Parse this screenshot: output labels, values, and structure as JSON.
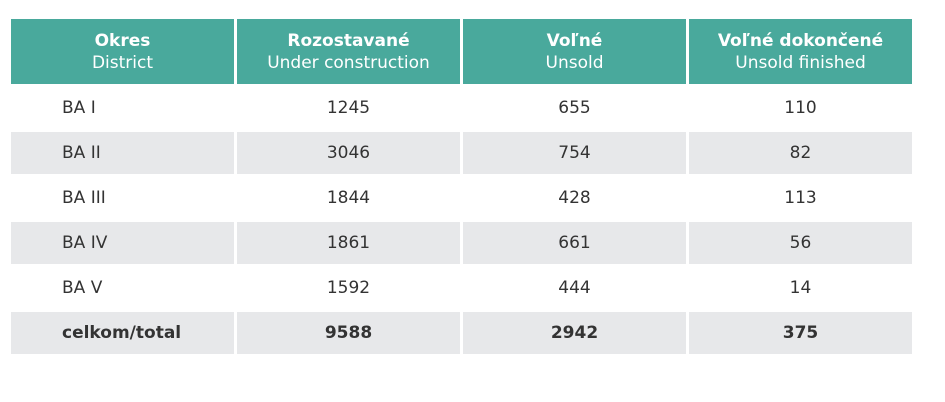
{
  "table": {
    "headers": [
      {
        "main": "Okres",
        "sub": "District"
      },
      {
        "main": "Rozostavané",
        "sub": "Under construction"
      },
      {
        "main": "Voľné",
        "sub": "Unsold"
      },
      {
        "main": "Voľné dokončené",
        "sub": "Unsold finished"
      }
    ],
    "rows": [
      {
        "district": "BA I",
        "under_construction": "1245",
        "unsold": "655",
        "unsold_finished": "110"
      },
      {
        "district": "BA II",
        "under_construction": "3046",
        "unsold": "754",
        "unsold_finished": "82"
      },
      {
        "district": "BA III",
        "under_construction": "1844",
        "unsold": "428",
        "unsold_finished": "113"
      },
      {
        "district": "BA IV",
        "under_construction": "1861",
        "unsold": "661",
        "unsold_finished": "56"
      },
      {
        "district": "BA V",
        "under_construction": "1592",
        "unsold": "444",
        "unsold_finished": "14"
      }
    ],
    "total": {
      "district": "celkom/total",
      "under_construction": "9588",
      "unsold": "2942",
      "unsold_finished": "375"
    }
  },
  "colors": {
    "header_bg": "#49a99c",
    "header_text": "#ffffff",
    "stripe_bg": "#e7e8ea",
    "body_text": "#333333"
  }
}
